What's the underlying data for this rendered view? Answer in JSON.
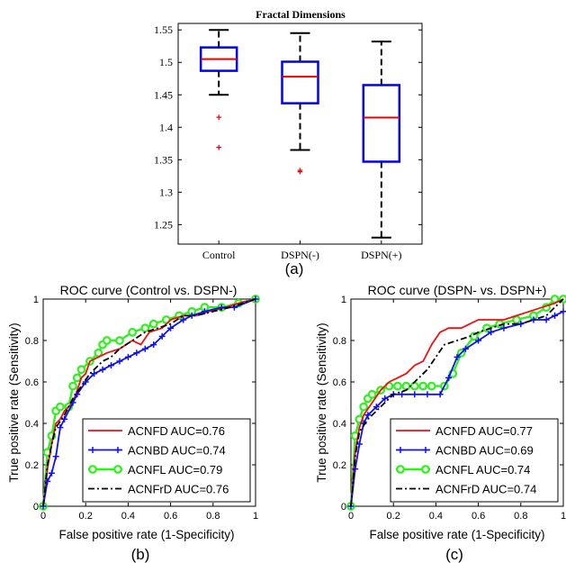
{
  "panels": {
    "a": "(a)",
    "b": "(b)",
    "c": "(c)"
  },
  "chart_data": [
    {
      "type": "box",
      "title": "Fractal Dimensions",
      "categories": [
        "Control",
        "DSPN(-)",
        "DSPN(+)"
      ],
      "ylim": [
        1.22,
        1.56
      ],
      "yticks": [
        1.25,
        1.3,
        1.35,
        1.4,
        1.45,
        1.5,
        1.55
      ],
      "ytick_labels": [
        "1.25",
        "1.3",
        "1.35",
        "1.4",
        "1.45",
        "1.5",
        "1.55"
      ],
      "boxes": [
        {
          "whisker_low": 1.45,
          "q1": 1.487,
          "median": 1.505,
          "q3": 1.523,
          "whisker_high": 1.55,
          "outliers": [
            1.416,
            1.369
          ]
        },
        {
          "whisker_low": 1.365,
          "q1": 1.437,
          "median": 1.478,
          "q3": 1.501,
          "whisker_high": 1.545,
          "outliers": [
            1.334,
            1.332
          ]
        },
        {
          "whisker_low": 1.23,
          "q1": 1.347,
          "median": 1.415,
          "q3": 1.465,
          "whisker_high": 1.532,
          "outliers": []
        }
      ],
      "colors": {
        "box": "#0000ee",
        "median": "#ee0000",
        "whisker": "#000000",
        "outlier": "#ee0000"
      }
    },
    {
      "type": "line",
      "title": "ROC curve (Control vs. DSPN-)",
      "xlabel": "False positive rate (1-Specificity)",
      "ylabel": "True positive rate (Sensitivity)",
      "xlim": [
        0,
        1
      ],
      "ylim": [
        0,
        1
      ],
      "xticks": [
        0,
        0.2,
        0.4,
        0.6,
        0.8,
        1
      ],
      "xtick_labels": [
        "0",
        "0.2",
        "0.4",
        "0.6",
        "0.8",
        "1"
      ],
      "yticks": [
        0,
        0.2,
        0.4,
        0.6,
        0.8,
        1
      ],
      "ytick_labels": [
        "0",
        "0.2",
        "0.4",
        "0.6",
        "0.8",
        "1"
      ],
      "legend": "bottom-right",
      "series": [
        {
          "name": "ACNFD AUC=0.76",
          "color": "#ee1111",
          "style": "solid",
          "marker": "none",
          "x": [
            0,
            0.02,
            0.04,
            0.06,
            0.08,
            0.1,
            0.14,
            0.16,
            0.18,
            0.2,
            0.22,
            0.26,
            0.3,
            0.36,
            0.42,
            0.46,
            0.5,
            0.56,
            0.6,
            0.66,
            0.72,
            0.78,
            0.86,
            0.92,
            1
          ],
          "y": [
            0,
            0.18,
            0.3,
            0.4,
            0.42,
            0.46,
            0.5,
            0.56,
            0.62,
            0.64,
            0.7,
            0.72,
            0.74,
            0.76,
            0.8,
            0.78,
            0.84,
            0.86,
            0.9,
            0.92,
            0.92,
            0.94,
            0.96,
            0.98,
            1
          ]
        },
        {
          "name": "ACNBD AUC=0.74",
          "color": "#1111ee",
          "style": "solid",
          "marker": "plus",
          "x": [
            0,
            0.02,
            0.04,
            0.06,
            0.08,
            0.1,
            0.14,
            0.16,
            0.2,
            0.24,
            0.28,
            0.32,
            0.36,
            0.4,
            0.44,
            0.48,
            0.52,
            0.56,
            0.6,
            0.66,
            0.7,
            0.76,
            0.84,
            0.9,
            1
          ],
          "y": [
            0,
            0.12,
            0.16,
            0.24,
            0.38,
            0.42,
            0.5,
            0.54,
            0.6,
            0.64,
            0.66,
            0.68,
            0.7,
            0.72,
            0.74,
            0.76,
            0.78,
            0.82,
            0.86,
            0.9,
            0.92,
            0.94,
            0.96,
            0.96,
            1
          ]
        },
        {
          "name": "ACNFL AUC=0.79",
          "color": "#33ee22",
          "style": "solid",
          "marker": "circle",
          "x": [
            0,
            0.02,
            0.04,
            0.06,
            0.08,
            0.12,
            0.14,
            0.16,
            0.18,
            0.22,
            0.26,
            0.28,
            0.3,
            0.36,
            0.42,
            0.48,
            0.52,
            0.58,
            0.64,
            0.7,
            0.76,
            0.84,
            0.92,
            1
          ],
          "y": [
            0,
            0.26,
            0.34,
            0.46,
            0.48,
            0.48,
            0.58,
            0.62,
            0.66,
            0.7,
            0.74,
            0.78,
            0.8,
            0.8,
            0.84,
            0.86,
            0.88,
            0.9,
            0.92,
            0.94,
            0.96,
            0.96,
            0.98,
            1
          ]
        },
        {
          "name": "ACNFrD AUC=0.76",
          "color": "#000000",
          "style": "dashdot",
          "marker": "none",
          "x": [
            0,
            0.02,
            0.04,
            0.06,
            0.1,
            0.14,
            0.18,
            0.22,
            0.28,
            0.32,
            0.36,
            0.42,
            0.48,
            0.54,
            0.6,
            0.66,
            0.72,
            0.8,
            0.88,
            0.94,
            1
          ],
          "y": [
            0,
            0.2,
            0.3,
            0.38,
            0.44,
            0.52,
            0.58,
            0.64,
            0.7,
            0.72,
            0.76,
            0.8,
            0.84,
            0.86,
            0.88,
            0.92,
            0.92,
            0.94,
            0.96,
            0.98,
            1
          ]
        }
      ]
    },
    {
      "type": "line",
      "title": "ROC curve (DSPN- vs. DSPN+)",
      "xlabel": "False positive rate (1-Specificity)",
      "ylabel": "True positive rate (Sensitivity)",
      "xlim": [
        0,
        1
      ],
      "ylim": [
        0,
        1
      ],
      "xticks": [
        0,
        0.2,
        0.4,
        0.6,
        0.8,
        1
      ],
      "xtick_labels": [
        "0",
        "0.2",
        "0.4",
        "0.6",
        "0.8",
        "1"
      ],
      "yticks": [
        0,
        0.2,
        0.4,
        0.6,
        0.8,
        1
      ],
      "ytick_labels": [
        "0",
        "0.2",
        "0.4",
        "0.6",
        "0.8",
        "1"
      ],
      "legend": "bottom-right",
      "series": [
        {
          "name": "ACNFD AUC=0.77",
          "color": "#ee1111",
          "style": "solid",
          "marker": "none",
          "x": [
            0,
            0.02,
            0.04,
            0.06,
            0.1,
            0.14,
            0.18,
            0.22,
            0.26,
            0.3,
            0.34,
            0.38,
            0.42,
            0.46,
            0.52,
            0.56,
            0.6,
            0.66,
            0.72,
            0.78,
            0.84,
            0.9,
            0.96,
            1
          ],
          "y": [
            0,
            0.26,
            0.38,
            0.44,
            0.5,
            0.56,
            0.6,
            0.62,
            0.64,
            0.68,
            0.7,
            0.78,
            0.84,
            0.86,
            0.86,
            0.88,
            0.9,
            0.9,
            0.9,
            0.92,
            0.94,
            0.96,
            0.98,
            1
          ]
        },
        {
          "name": "ACNBD AUC=0.69",
          "color": "#1111ee",
          "style": "solid",
          "marker": "plus",
          "x": [
            0,
            0.02,
            0.04,
            0.06,
            0.08,
            0.12,
            0.16,
            0.2,
            0.24,
            0.3,
            0.36,
            0.42,
            0.46,
            0.5,
            0.54,
            0.6,
            0.66,
            0.72,
            0.8,
            0.86,
            0.92,
            0.96,
            1
          ],
          "y": [
            0,
            0.18,
            0.3,
            0.4,
            0.44,
            0.48,
            0.52,
            0.54,
            0.54,
            0.54,
            0.54,
            0.54,
            0.62,
            0.72,
            0.76,
            0.8,
            0.84,
            0.86,
            0.88,
            0.9,
            0.9,
            0.92,
            0.94
          ]
        },
        {
          "name": "ACNFL AUC=0.74",
          "color": "#33ee22",
          "style": "solid",
          "marker": "circle",
          "x": [
            0,
            0.02,
            0.04,
            0.06,
            0.08,
            0.1,
            0.14,
            0.18,
            0.22,
            0.26,
            0.3,
            0.34,
            0.38,
            0.44,
            0.48,
            0.52,
            0.58,
            0.64,
            0.7,
            0.78,
            0.86,
            0.92,
            0.96,
            1
          ],
          "y": [
            0,
            0.34,
            0.42,
            0.48,
            0.52,
            0.54,
            0.56,
            0.58,
            0.58,
            0.58,
            0.58,
            0.58,
            0.58,
            0.58,
            0.64,
            0.74,
            0.82,
            0.86,
            0.88,
            0.9,
            0.92,
            0.96,
            1,
            1
          ]
        },
        {
          "name": "ACNFrD AUC=0.74",
          "color": "#000000",
          "style": "dashdot",
          "marker": "none",
          "x": [
            0,
            0.02,
            0.04,
            0.08,
            0.12,
            0.16,
            0.2,
            0.26,
            0.3,
            0.36,
            0.4,
            0.44,
            0.5,
            0.56,
            0.6,
            0.66,
            0.72,
            0.8,
            0.86,
            0.92,
            1
          ],
          "y": [
            0,
            0.24,
            0.36,
            0.42,
            0.46,
            0.5,
            0.54,
            0.56,
            0.6,
            0.66,
            0.72,
            0.78,
            0.8,
            0.82,
            0.84,
            0.86,
            0.88,
            0.88,
            0.9,
            0.92,
            1
          ]
        }
      ]
    }
  ]
}
